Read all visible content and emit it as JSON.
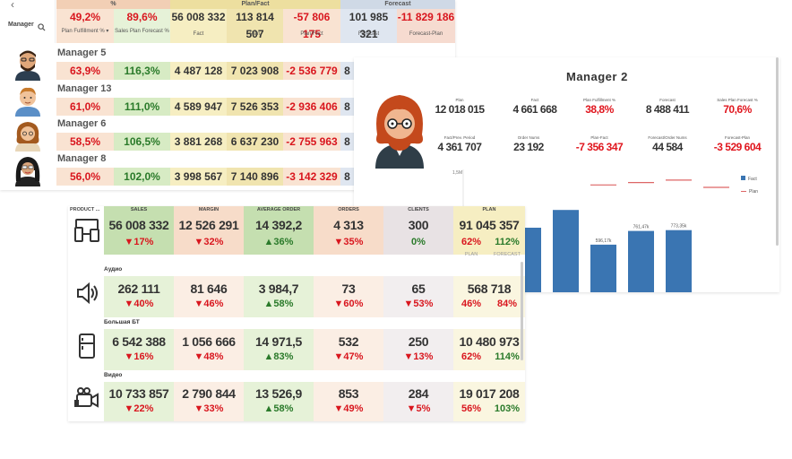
{
  "manager_table": {
    "top_headers": {
      "pct": "%",
      "plan_fact": "Plan/Fact",
      "forecast": "Forecast"
    },
    "back_label": "‹",
    "dimension_label": "Manager",
    "totals": {
      "plan_fulfillment": "49,2%",
      "sales_plan_forecast": "89,6%",
      "fact": "56 008 332",
      "plan": "113 814 507",
      "plan_fact": "-57 806 175",
      "forecast": "101 985 321",
      "forecast_plan": "-11 829 186"
    },
    "subheaders": {
      "plan_fulfillment": "Plan Fulfillment % ▾",
      "sales_plan_forecast": "Sales Plan Forecast %",
      "fact": "Fact",
      "plan": "Plan",
      "plan_fact": "Plan/Fact",
      "forecast": "Forecast",
      "forecast_plan": "Forecast-Plan"
    },
    "rows": [
      {
        "name": "Manager 5",
        "plan_fulfillment": "63,9%",
        "sales_plan_forecast": "116,3%",
        "fact": "4 487 128",
        "plan": "7 023 908",
        "plan_fact": "-2 536 779",
        "forecast": "8"
      },
      {
        "name": "Manager 13",
        "plan_fulfillment": "61,0%",
        "sales_plan_forecast": "111,0%",
        "fact": "4 589 947",
        "plan": "7 526 353",
        "plan_fact": "-2 936 406",
        "forecast": "8"
      },
      {
        "name": "Manager 6",
        "plan_fulfillment": "58,5%",
        "sales_plan_forecast": "106,5%",
        "fact": "3 881 268",
        "plan": "6 637 230",
        "plan_fact": "-2 755 963",
        "forecast": "8"
      },
      {
        "name": "Manager 8",
        "plan_fulfillment": "56,0%",
        "sales_plan_forecast": "102,0%",
        "fact": "3 998 567",
        "plan": "7 140 896",
        "plan_fact": "-3 142 329",
        "forecast": "8"
      }
    ]
  },
  "manager2": {
    "title": "Manager 2",
    "kpis": [
      {
        "label": "Plan",
        "value": "12 018 015",
        "color": "#222222"
      },
      {
        "label": "Fact",
        "value": "4 661 668",
        "color": "#222222"
      },
      {
        "label": "Plan Fulfillment %",
        "value": "38,8%",
        "color": "#e0161e"
      },
      {
        "label": "Forecast",
        "value": "8 488 411",
        "color": "#222222"
      },
      {
        "label": "Sales Plan Forecast %",
        "value": "70,6%",
        "color": "#e0161e"
      },
      {
        "label": "Fact/Prev. Period",
        "value": "4 361 707",
        "color": "#222222"
      },
      {
        "label": "Order Nums",
        "value": "23 192",
        "color": "#222222"
      },
      {
        "label": "Plan-Fact",
        "value": "-7 356 347",
        "color": "#e0161e"
      },
      {
        "label": "Forecast/Order Nums",
        "value": "44 584",
        "color": "#222222"
      },
      {
        "label": "Forecast-Plan",
        "value": "-3 529 604",
        "color": "#e0161e"
      }
    ],
    "chart_data": {
      "type": "bar",
      "ytick_top": "1,5M",
      "series": [
        {
          "name": "Fact"
        },
        {
          "name": "Plan"
        }
      ],
      "legend": [
        "Fact",
        "Plan"
      ],
      "bar_labels": [
        "",
        "",
        "596,17k",
        "761,47k",
        "773,35k"
      ],
      "bar_values": [
        0.8,
        1.02,
        0.59,
        0.76,
        0.77
      ],
      "plan_values": [
        null,
        null,
        1.33,
        1.36,
        1.39,
        1.3
      ],
      "ylim": [
        0,
        1.5
      ]
    }
  },
  "product_table": {
    "dimension_label": "PRODUCT ...",
    "headers": [
      "SALES",
      "MARGIN",
      "AVERAGE ORDER",
      "ORDERS",
      "CLIENTS",
      "PLAN"
    ],
    "plan_sublabels": [
      "PLAN",
      "FORECAST"
    ],
    "total": {
      "values": [
        "56 008 332",
        "12 526 291",
        "14 392,2",
        "4 313",
        "300",
        "91 045 357"
      ],
      "changes": [
        "▼17%",
        "▼32%",
        "▲36%",
        "▼35%",
        "0%"
      ],
      "plan_pct": "62%",
      "forecast_pct": "112%"
    },
    "rows": [
      {
        "category": "Аудио",
        "icon": "speaker-icon",
        "values": [
          "262 111",
          "81 646",
          "3 984,7",
          "73",
          "65",
          "568 718"
        ],
        "changes": [
          "▼40%",
          "▼46%",
          "▲58%",
          "▼60%",
          "▼53%"
        ],
        "plan_pct": "46%",
        "forecast_pct": "84%"
      },
      {
        "category": "Большая БТ",
        "icon": "fridge-icon",
        "values": [
          "6 542 388",
          "1 056 666",
          "14 971,5",
          "532",
          "250",
          "10 480 973"
        ],
        "changes": [
          "▼16%",
          "▼48%",
          "▲83%",
          "▼47%",
          "▼13%"
        ],
        "plan_pct": "62%",
        "forecast_pct": "114%"
      },
      {
        "category": "Видео",
        "icon": "video-camera-icon",
        "values": [
          "10 733 857",
          "2 790 844",
          "13 526,9",
          "853",
          "284",
          "19 017 208"
        ],
        "changes": [
          "▼22%",
          "▼33%",
          "▲58%",
          "▼49%",
          "▼5%"
        ],
        "plan_pct": "56%",
        "forecast_pct": "103%"
      }
    ]
  },
  "colors": {
    "green": "#c5dfb0",
    "pink": "#f7dcc9",
    "yellow": "#f6eec2",
    "lavender": "#dfe6f0",
    "lightgreen": "#e6f2d8",
    "red": "#d9161e",
    "dkgreen": "#2a7a2a",
    "blue": "#3a75b2"
  }
}
